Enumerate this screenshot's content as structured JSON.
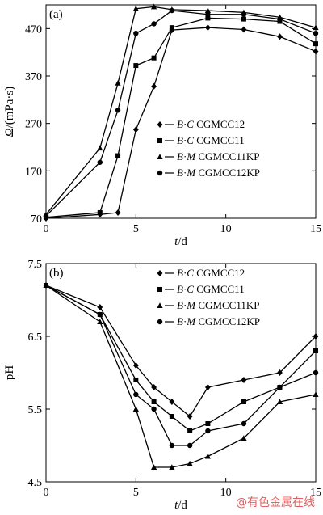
{
  "chart_data": [
    {
      "type": "line",
      "panel_label": "(a)",
      "xlabel": "t/d",
      "ylabel": "Ω/(mPa·s)",
      "xlim": [
        0,
        15
      ],
      "ylim": [
        70,
        520
      ],
      "xticks": [
        "0",
        "5",
        "10",
        "15"
      ],
      "yticks": [
        "70",
        "170",
        "270",
        "370",
        "470"
      ],
      "legend_position": "center-right",
      "series": [
        {
          "name": "B·C CGMCC12",
          "marker": "diamond",
          "x": [
            0,
            3,
            4,
            5,
            6,
            7,
            9,
            11,
            13,
            15
          ],
          "y": [
            70,
            78,
            82,
            257,
            348,
            467,
            472,
            468,
            453,
            422
          ]
        },
        {
          "name": "B·C CGMCC11",
          "marker": "square",
          "x": [
            0,
            3,
            4,
            5,
            6,
            7,
            9,
            11,
            13,
            15
          ],
          "y": [
            72,
            82,
            202,
            392,
            408,
            472,
            492,
            490,
            485,
            438
          ]
        },
        {
          "name": "B·M CGMCC11KP",
          "marker": "triangle",
          "x": [
            0,
            3,
            4,
            5,
            6,
            7,
            9,
            11,
            13,
            15
          ],
          "y": [
            78,
            218,
            355,
            512,
            516,
            510,
            508,
            504,
            494,
            472
          ]
        },
        {
          "name": "B·M CGMCC12KP",
          "marker": "circle",
          "x": [
            0,
            3,
            4,
            5,
            6,
            7,
            9,
            11,
            13,
            15
          ],
          "y": [
            75,
            188,
            298,
            460,
            480,
            508,
            500,
            500,
            490,
            460
          ]
        }
      ]
    },
    {
      "type": "line",
      "panel_label": "(b)",
      "xlabel": "t/d",
      "ylabel": "pH",
      "xlim": [
        0,
        15
      ],
      "ylim": [
        4.5,
        7.5
      ],
      "xticks": [
        "0",
        "5",
        "10",
        "15"
      ],
      "yticks": [
        "4.5",
        "5.5",
        "6.5",
        "7.5"
      ],
      "legend_position": "top-right",
      "series": [
        {
          "name": "B·C CGMCC12",
          "marker": "diamond",
          "x": [
            0,
            3,
            5,
            6,
            7,
            8,
            9,
            11,
            13,
            15
          ],
          "y": [
            7.2,
            6.9,
            6.1,
            5.8,
            5.6,
            5.4,
            5.8,
            5.9,
            6.0,
            6.5
          ]
        },
        {
          "name": "B·C CGMCC11",
          "marker": "square",
          "x": [
            0,
            3,
            5,
            6,
            7,
            8,
            9,
            11,
            13,
            15
          ],
          "y": [
            7.2,
            6.8,
            5.9,
            5.6,
            5.4,
            5.2,
            5.3,
            5.6,
            5.8,
            6.3
          ]
        },
        {
          "name": "B·M CGMCC11KP",
          "marker": "triangle",
          "x": [
            0,
            3,
            5,
            6,
            7,
            8,
            9,
            11,
            13,
            15
          ],
          "y": [
            7.2,
            6.7,
            5.5,
            4.7,
            4.7,
            4.75,
            4.85,
            5.1,
            5.6,
            5.7
          ]
        },
        {
          "name": "B·M CGMCC12KP",
          "marker": "circle",
          "x": [
            0,
            3,
            5,
            6,
            7,
            8,
            9,
            11,
            13,
            15
          ],
          "y": [
            7.2,
            6.8,
            5.7,
            5.5,
            5.0,
            5.0,
            5.2,
            5.3,
            5.8,
            6.0
          ]
        }
      ]
    }
  ],
  "watermark": "@有色金属在线"
}
